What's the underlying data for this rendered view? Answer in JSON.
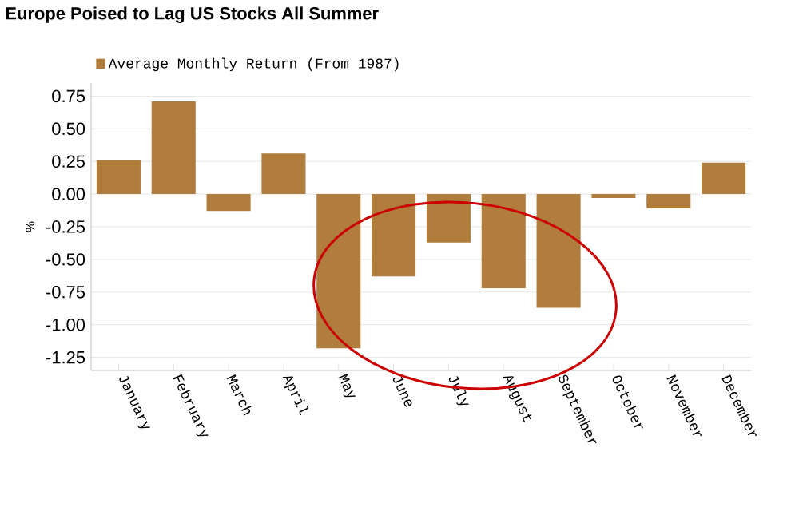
{
  "chart_data": {
    "type": "bar",
    "title": "Europe Poised to Lag US Stocks All Summer",
    "ylabel": "%",
    "categories": [
      "January",
      "February",
      "March",
      "April",
      "May",
      "June",
      "July",
      "August",
      "September",
      "October",
      "November",
      "December"
    ],
    "series": [
      {
        "name": "Average Monthly Return (From 1987)",
        "color": "#b07d3c",
        "values": [
          0.26,
          0.71,
          -0.13,
          0.31,
          -1.18,
          -0.63,
          -0.37,
          -0.72,
          -0.87,
          -0.03,
          -0.11,
          0.24
        ]
      }
    ],
    "ylim": [
      -1.35,
      0.85
    ],
    "yticks": [
      {
        "value": -1.25,
        "label": "-1.25"
      },
      {
        "value": -1.0,
        "label": "-1.00"
      },
      {
        "value": -0.75,
        "label": "-0.75"
      },
      {
        "value": -0.5,
        "label": "-0.50"
      },
      {
        "value": -0.25,
        "label": "-0.25"
      },
      {
        "value": 0,
        "label": "0.00"
      },
      {
        "value": 0.25,
        "label": "0.25"
      },
      {
        "value": 0.5,
        "label": "0.50"
      },
      {
        "value": 0.75,
        "label": "0.75"
      }
    ],
    "grid": "y",
    "legend": "top left"
  }
}
